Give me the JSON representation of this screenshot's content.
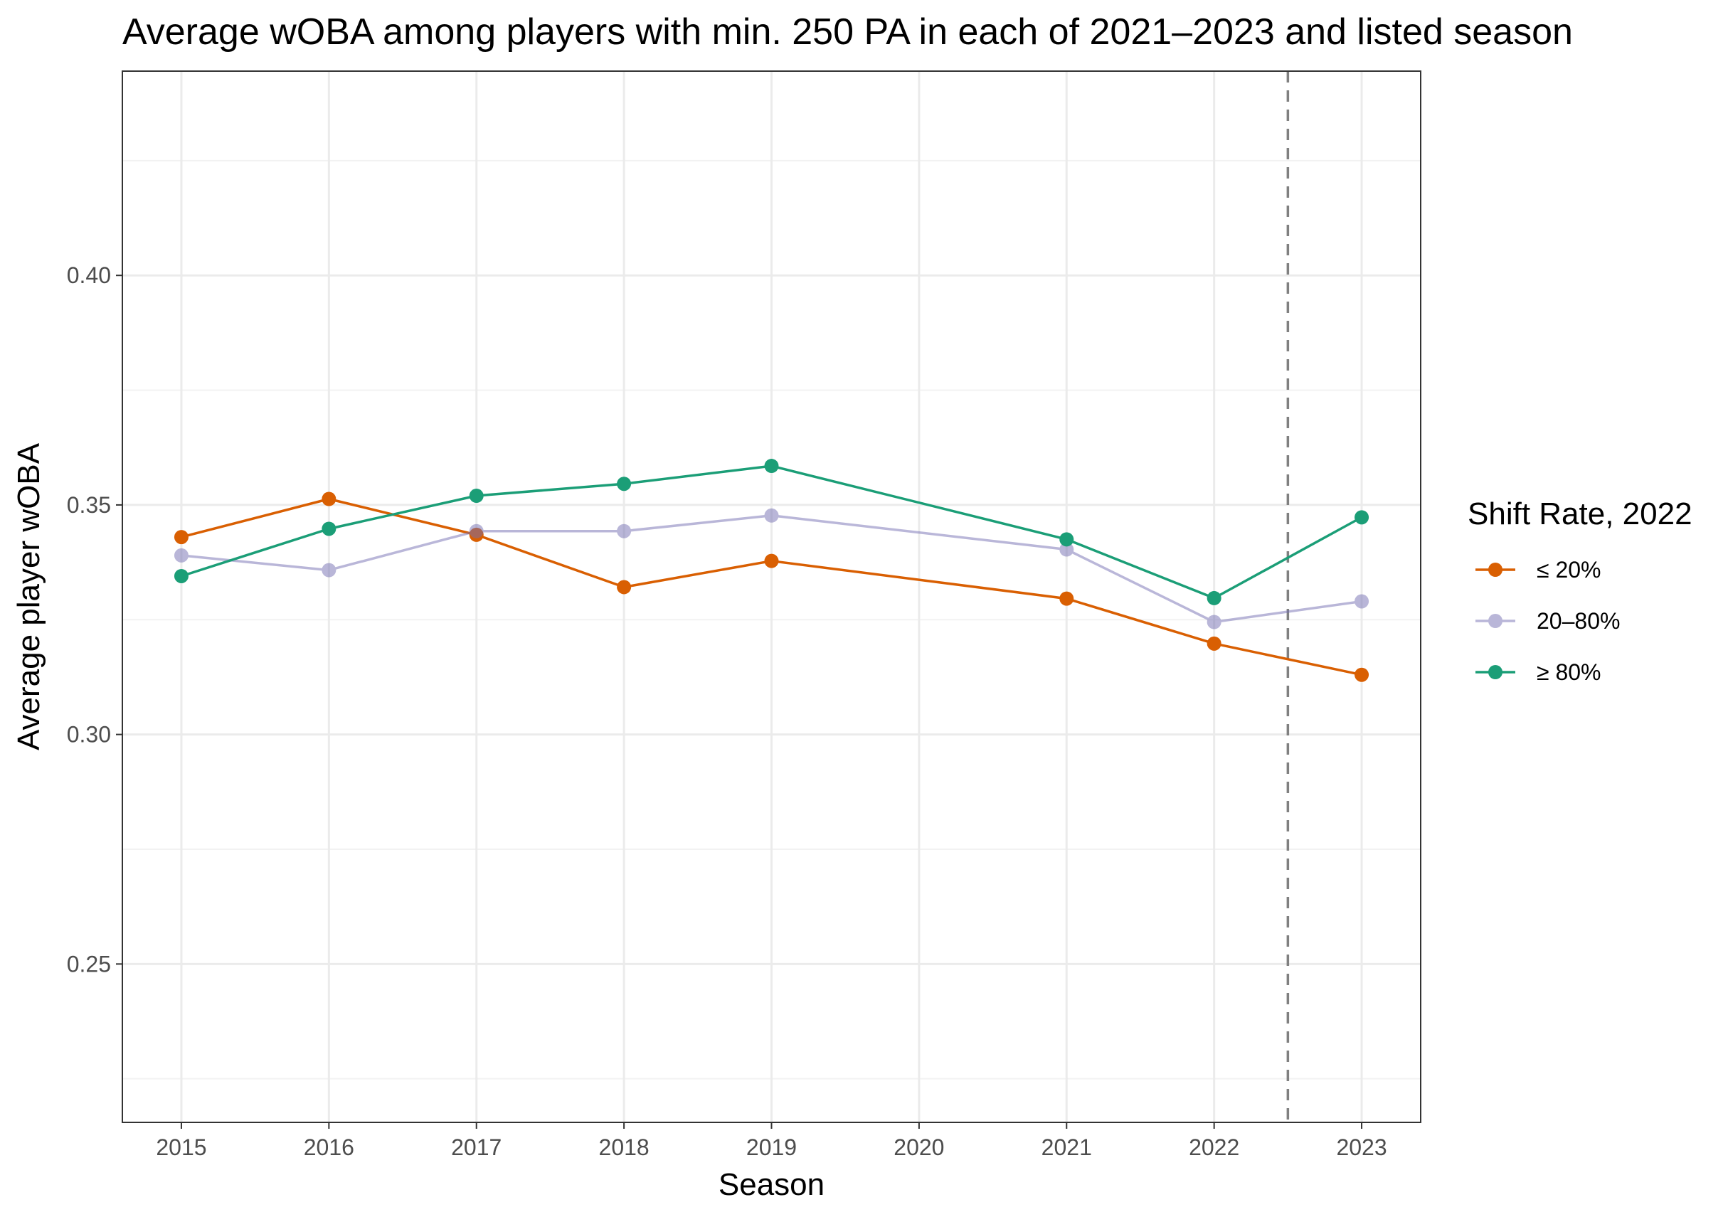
{
  "chart_data": {
    "type": "line",
    "title": "Average wOBA among players with min. 250 PA in each of 2021–2023 and listed season",
    "xlabel": "Season",
    "ylabel": "Average player wOBA",
    "x": [
      2015,
      2016,
      2017,
      2018,
      2019,
      2020,
      2021,
      2022,
      2023
    ],
    "x_tick_labels": [
      "2015",
      "2016",
      "2017",
      "2018",
      "2019",
      "2020",
      "2021",
      "2022",
      "2023"
    ],
    "xlim": [
      2014.6,
      2023.4
    ],
    "ylim": [
      0.2155,
      0.4445
    ],
    "y_ticks": [
      0.25,
      0.3,
      0.35,
      0.4
    ],
    "y_tick_labels": [
      "0.25",
      "0.30",
      "0.35",
      "0.40"
    ],
    "y_minor_ticks": [
      0.225,
      0.275,
      0.325,
      0.375,
      0.425
    ],
    "grid": true,
    "reference_line": {
      "x": 2022.5,
      "style": "dashed",
      "color": "#808080"
    },
    "legend": {
      "title": "Shift Rate, 2022",
      "position": "right"
    },
    "series": [
      {
        "name": "≤ 20%",
        "color": "#D95F02",
        "opacity": 1,
        "points": [
          {
            "x": 2015,
            "y": 0.343
          },
          {
            "x": 2016,
            "y": 0.3513
          },
          {
            "x": 2017,
            "y": 0.3435
          },
          {
            "x": 2018,
            "y": 0.3321
          },
          {
            "x": 2019,
            "y": 0.3378
          },
          {
            "x": 2021,
            "y": 0.3296
          },
          {
            "x": 2022,
            "y": 0.3198
          },
          {
            "x": 2023,
            "y": 0.313
          }
        ]
      },
      {
        "name": "20–80%",
        "color": "#7570B3",
        "opacity": 0.5,
        "points": [
          {
            "x": 2015,
            "y": 0.339
          },
          {
            "x": 2016,
            "y": 0.3358
          },
          {
            "x": 2017,
            "y": 0.3443
          },
          {
            "x": 2018,
            "y": 0.3443
          },
          {
            "x": 2019,
            "y": 0.3477
          },
          {
            "x": 2021,
            "y": 0.3403
          },
          {
            "x": 2022,
            "y": 0.3245
          },
          {
            "x": 2023,
            "y": 0.329
          }
        ]
      },
      {
        "name": "≥ 80%",
        "color": "#1B9E77",
        "opacity": 1,
        "points": [
          {
            "x": 2015,
            "y": 0.3345
          },
          {
            "x": 2016,
            "y": 0.3448
          },
          {
            "x": 2017,
            "y": 0.352
          },
          {
            "x": 2018,
            "y": 0.3546
          },
          {
            "x": 2019,
            "y": 0.3585
          },
          {
            "x": 2021,
            "y": 0.3425
          },
          {
            "x": 2022,
            "y": 0.3297
          },
          {
            "x": 2023,
            "y": 0.3473
          }
        ]
      }
    ]
  }
}
